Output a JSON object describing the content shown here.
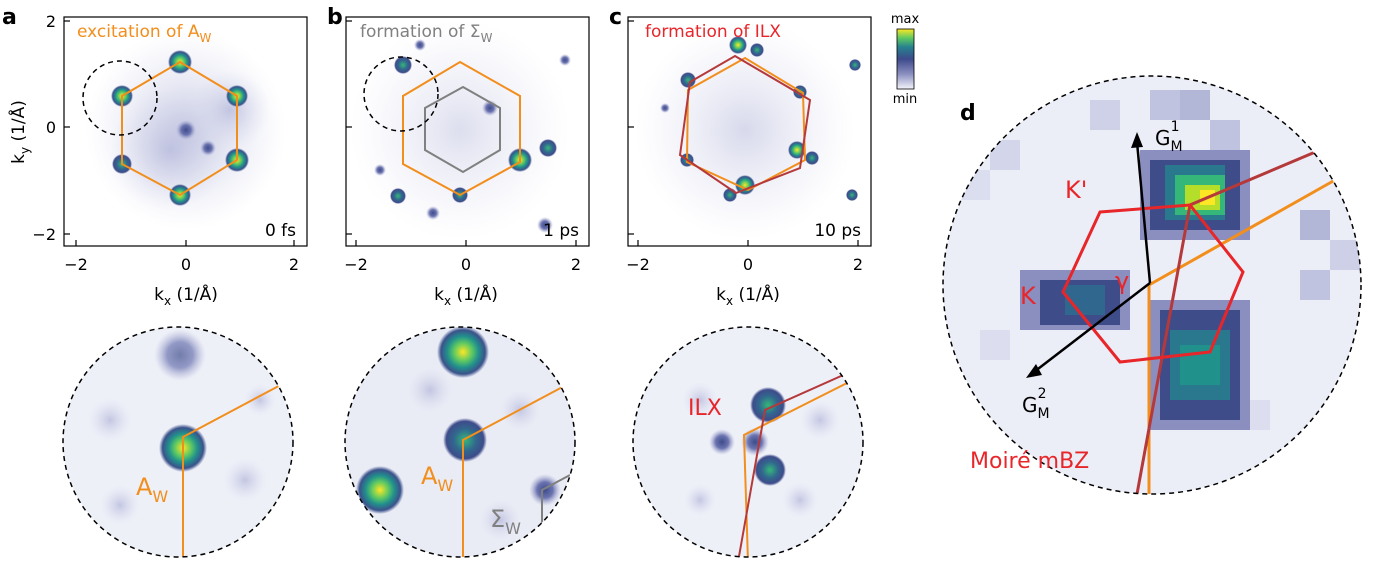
{
  "panels": {
    "a": {
      "letter": "a",
      "title": "excitation of A",
      "title_sub": "W",
      "time": "0 fs",
      "zoom_label": "A",
      "zoom_label_sub": "W"
    },
    "b": {
      "letter": "b",
      "title": "formation of Σ",
      "title_sub": "W",
      "time": "1 ps",
      "zoom_label_a": "A",
      "zoom_label_a_sub": "W",
      "zoom_label_s": "Σ",
      "zoom_label_s_sub": "W"
    },
    "c": {
      "letter": "c",
      "title": "formation of ILX",
      "time": "10 ps",
      "zoom_label": "ILX"
    },
    "d": {
      "letter": "d",
      "g1": "G",
      "g1_sub": "M",
      "g1_sup": "1",
      "g2": "G",
      "g2_sub": "M",
      "g2_sup": "2",
      "k_prime": "K'",
      "k": "K",
      "gamma": "γ",
      "mbz_label": "Moiré mBZ"
    }
  },
  "axes": {
    "xlabel": "k",
    "xlabel_sub": "x",
    "xlabel_unit": " (1/Å)",
    "ylabel": "k",
    "ylabel_sub": "y",
    "ylabel_unit": " (1/Å)",
    "xticks": [
      "−2",
      "0",
      "2"
    ],
    "yticks": [
      "2",
      "0",
      "−2"
    ]
  },
  "colorbar": {
    "max": "max",
    "min": "min"
  },
  "colors": {
    "orange": "#f28e1c",
    "gray": "#808080",
    "red": "#e8262a",
    "darkred": "#b5393a",
    "colormap": [
      "#f4f4fb",
      "#bfc0dc",
      "#7a7fb2",
      "#3d4a8c",
      "#2b6d8e",
      "#20a486",
      "#8fd744",
      "#fde725"
    ]
  }
}
